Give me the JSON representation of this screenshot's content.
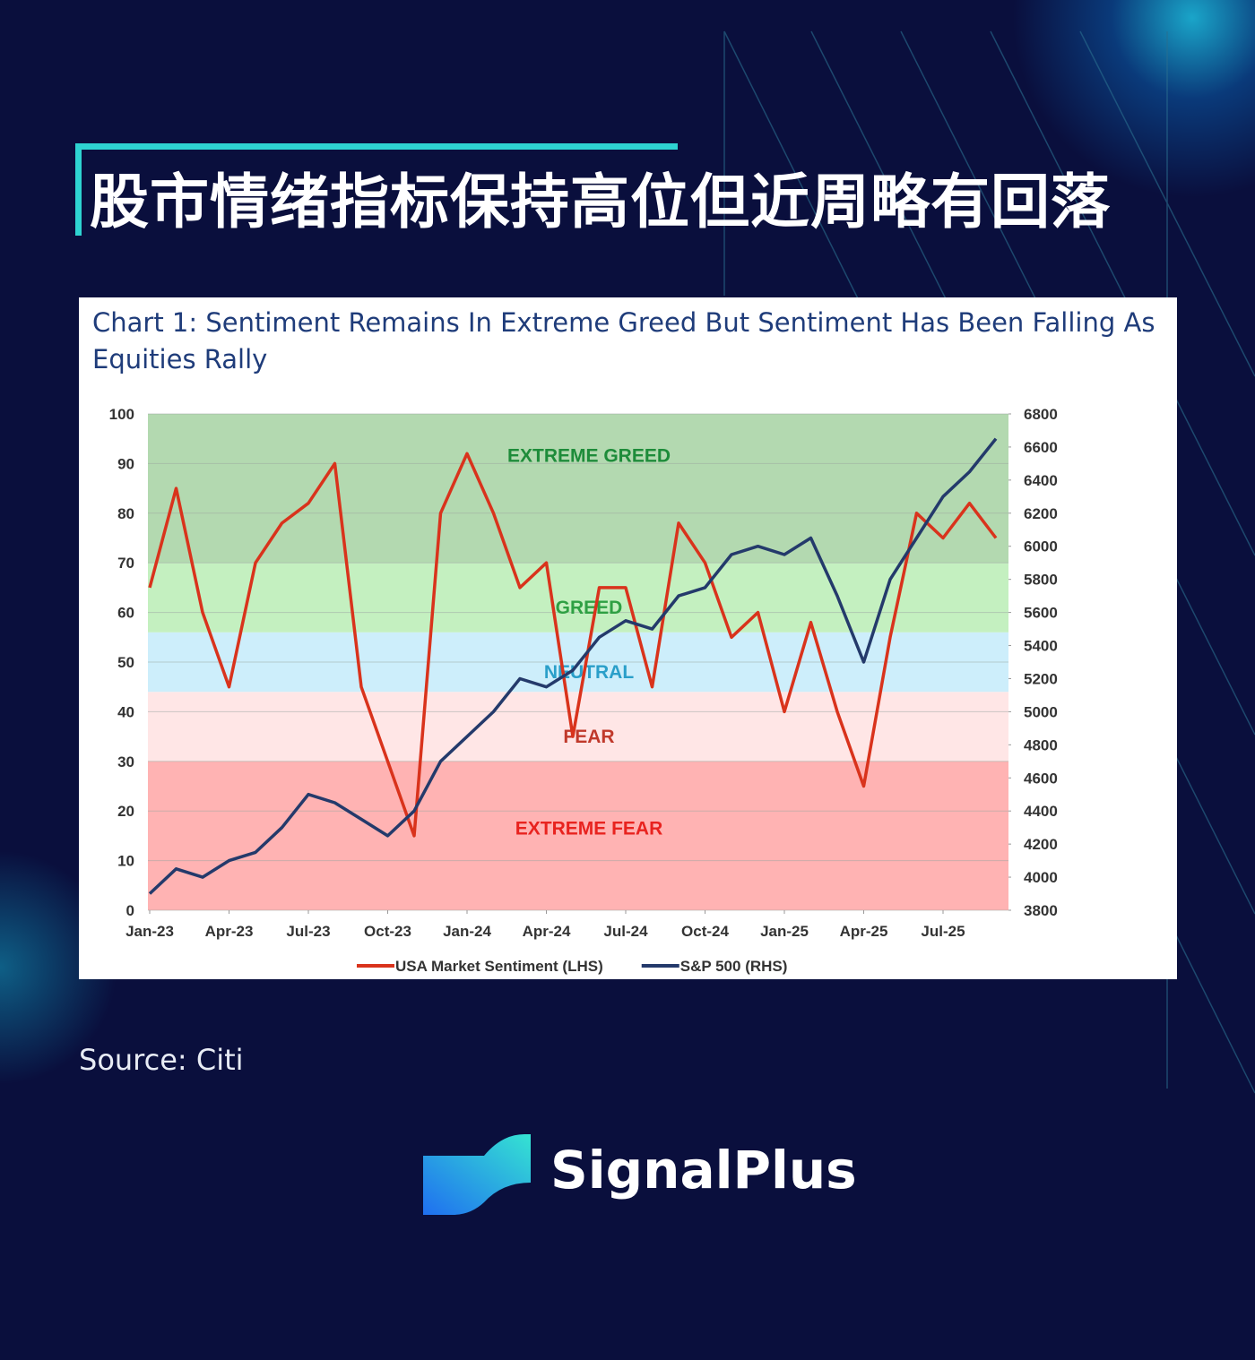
{
  "header": {
    "title": "股市情绪指标保持高位但近周略有回落"
  },
  "chart_data": {
    "type": "line",
    "title": "Chart 1: Sentiment Remains In Extreme Greed But Sentiment Has Been Falling As Equities Rally",
    "x": [
      "2023-01",
      "2023-02",
      "2023-03",
      "2023-04",
      "2023-05",
      "2023-06",
      "2023-07",
      "2023-08",
      "2023-09",
      "2023-10",
      "2023-11",
      "2023-12",
      "2024-01",
      "2024-02",
      "2024-03",
      "2024-04",
      "2024-05",
      "2024-06",
      "2024-07",
      "2024-08",
      "2024-09",
      "2024-10",
      "2024-11",
      "2024-12",
      "2025-01",
      "2025-02",
      "2025-03",
      "2025-04",
      "2025-05",
      "2025-06",
      "2025-07",
      "2025-08",
      "2025-09"
    ],
    "xticks": [
      {
        "value": "2023-01",
        "label": "Jan-23"
      },
      {
        "value": "2023-04",
        "label": "Apr-23"
      },
      {
        "value": "2023-07",
        "label": "Jul-23"
      },
      {
        "value": "2023-10",
        "label": "Oct-23"
      },
      {
        "value": "2024-01",
        "label": "Jan-24"
      },
      {
        "value": "2024-04",
        "label": "Apr-24"
      },
      {
        "value": "2024-07",
        "label": "Jul-24"
      },
      {
        "value": "2024-10",
        "label": "Oct-24"
      },
      {
        "value": "2025-01",
        "label": "Jan-25"
      },
      {
        "value": "2025-04",
        "label": "Apr-25"
      },
      {
        "value": "2025-07",
        "label": "Jul-25"
      }
    ],
    "ylim": [
      0,
      100
    ],
    "yticks": [
      0,
      10,
      20,
      30,
      40,
      50,
      60,
      70,
      80,
      90,
      100
    ],
    "y2lim": [
      3800,
      6800
    ],
    "y2ticks": [
      3800,
      4000,
      4200,
      4400,
      4600,
      4800,
      5000,
      5200,
      5400,
      5600,
      5800,
      6000,
      6200,
      6400,
      6600,
      6800
    ],
    "grid": true,
    "legend": "bottom",
    "bands": [
      {
        "label": "EXTREME FEAR",
        "from": 0,
        "to": 30,
        "color": "#ffb3b3",
        "text_color": "#e8231f"
      },
      {
        "label": "FEAR",
        "from": 30,
        "to": 44,
        "color": "#ffe6e6",
        "text_color": "#c0392b"
      },
      {
        "label": "NEUTRAL",
        "from": 44,
        "to": 56,
        "color": "#cdeefb",
        "text_color": "#2a9fc9"
      },
      {
        "label": "GREED",
        "from": 56,
        "to": 70,
        "color": "#c4f0c0",
        "text_color": "#2ea043"
      },
      {
        "label": "EXTREME GREED",
        "from": 70,
        "to": 100,
        "color": "#b3d9b0",
        "text_color": "#1e8c3a"
      }
    ],
    "series": [
      {
        "name": "USA Market Sentiment (LHS)",
        "color": "#d9331c",
        "values": [
          65,
          85,
          60,
          45,
          70,
          78,
          82,
          90,
          45,
          30,
          15,
          80,
          92,
          80,
          65,
          70,
          35,
          65,
          65,
          45,
          78,
          70,
          55,
          60,
          40,
          58,
          40,
          25,
          55,
          80,
          75,
          82,
          75
        ]
      },
      {
        "name": "S&P 500 (RHS)",
        "color": "#243a6b",
        "axis": "y2",
        "values": [
          3900,
          4050,
          4000,
          4100,
          4150,
          4300,
          4500,
          4450,
          4350,
          4250,
          4400,
          4700,
          4850,
          5000,
          5200,
          5150,
          5250,
          5450,
          5550,
          5500,
          5700,
          5750,
          5950,
          6000,
          5950,
          6050,
          5700,
          5300,
          5800,
          6050,
          6300,
          6450,
          6650
        ]
      }
    ]
  },
  "footer": {
    "source": "Source: Citi",
    "brand": "SignalPlus"
  }
}
